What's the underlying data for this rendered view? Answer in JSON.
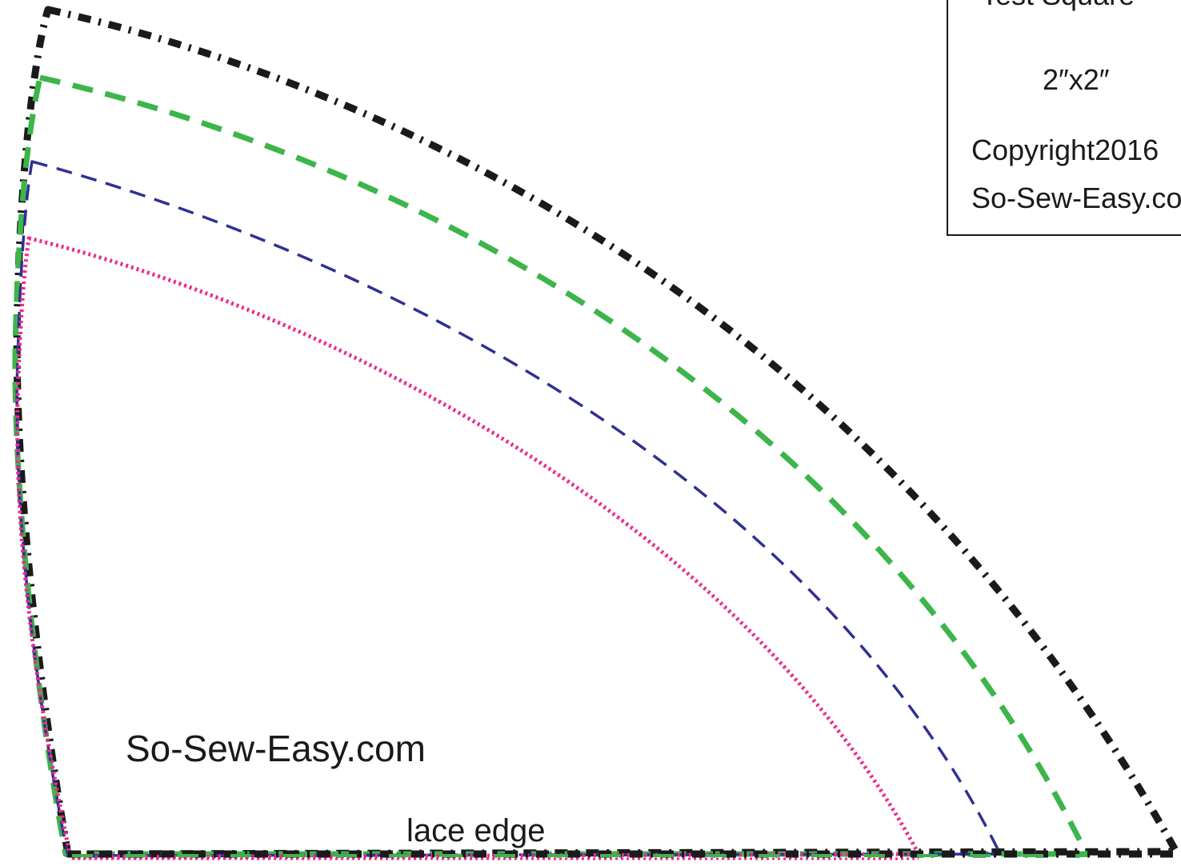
{
  "pattern": {
    "outline_labels": {
      "brand_center": "So-Sew-Easy.com",
      "bottom_edge": "lace edge"
    },
    "test_square": {
      "title": "Test Square",
      "size": "2″x2″",
      "copyright": "Copyright2016",
      "site": "So-Sew-Easy.com"
    },
    "lines": {
      "outer": {
        "color": "#1a1a1a",
        "style": "dash-dot"
      },
      "second": {
        "color": "#3cb54a",
        "style": "dashed"
      },
      "third": {
        "color": "#2e3192",
        "style": "dashed"
      },
      "inner": {
        "color": "#ec2b8c",
        "style": "dotted"
      }
    }
  }
}
